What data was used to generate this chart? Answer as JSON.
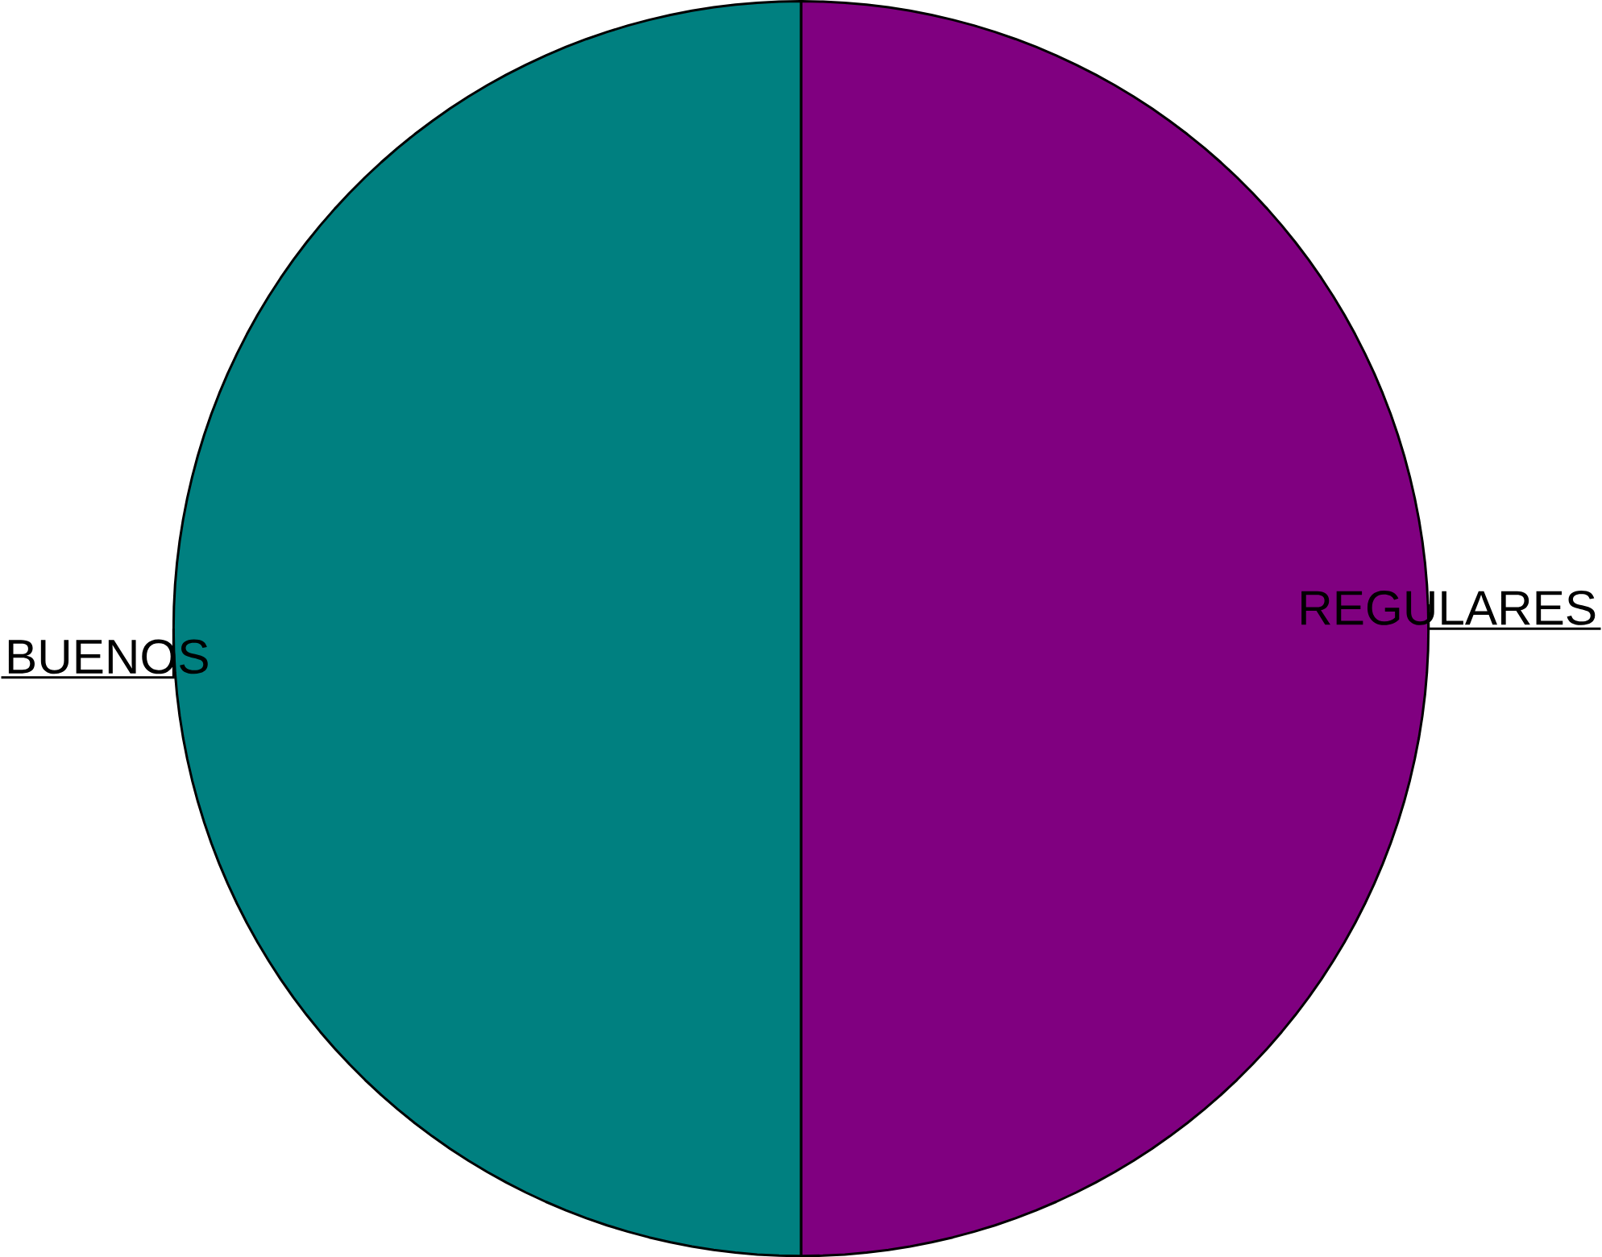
{
  "chart_data": {
    "type": "pie",
    "categories": [
      "REGULARES",
      "BUENOS"
    ],
    "values": [
      50,
      50
    ],
    "colors": [
      "#800080",
      "#008080"
    ]
  }
}
